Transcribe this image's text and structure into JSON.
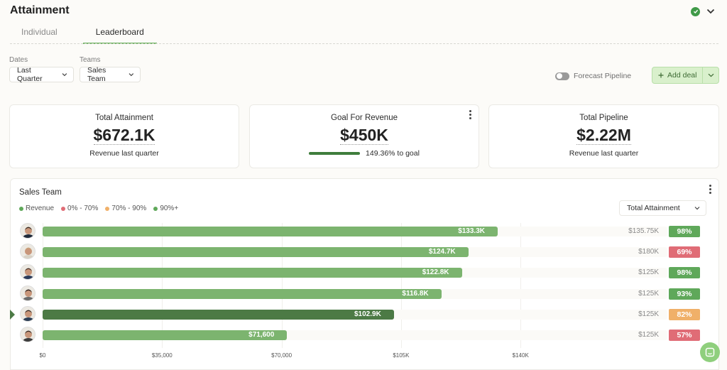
{
  "header": {
    "title": "Attainment"
  },
  "tabs": [
    {
      "label": "Individual",
      "active": false
    },
    {
      "label": "Leaderboard",
      "active": true
    }
  ],
  "filters": {
    "dates": {
      "label": "Dates",
      "value": "Last Quarter"
    },
    "teams": {
      "label": "Teams",
      "value": "Sales Team"
    }
  },
  "actions": {
    "forecast_label": "Forecast Pipeline",
    "forecast_on": false,
    "add_deal_label": "Add deal"
  },
  "cards": {
    "attainment": {
      "title": "Total Attainment",
      "value": "$672.1K",
      "sub": "Revenue last quarter"
    },
    "goal": {
      "title": "Goal For Revenue",
      "value": "$450K",
      "progress": 1.0,
      "sub": "149.36% to goal"
    },
    "pipeline": {
      "title": "Total Pipeline",
      "value": "$2.22M",
      "sub": "Revenue last quarter"
    }
  },
  "panel": {
    "title": "Sales Team",
    "metric": "Total Attainment"
  },
  "colors": {
    "bar": "#7cb46f",
    "bar_selected": "#4c7a45",
    "good": "#5fa85a",
    "bad": "#e06c76",
    "mid": "#f0b069"
  },
  "chart_data": {
    "type": "bar",
    "orientation": "horizontal",
    "legend": [
      {
        "label": "Revenue",
        "color": "#5fa85a"
      },
      {
        "label": "0% - 70%",
        "color": "#e06c76"
      },
      {
        "label": "70% - 90%",
        "color": "#f0b069"
      },
      {
        "label": "90%+",
        "color": "#5fa85a"
      }
    ],
    "x_ticks": [
      {
        "label": "$0",
        "value": 0
      },
      {
        "label": "$35,000",
        "value": 35000
      },
      {
        "label": "$70,000",
        "value": 70000
      },
      {
        "label": "$105K",
        "value": 105000
      },
      {
        "label": "$140K",
        "value": 140000
      }
    ],
    "xlim": [
      0,
      183000
    ],
    "rows": [
      {
        "value": 133300,
        "label": "$133.3K",
        "goal": "$135.75K",
        "pct": "98%",
        "band": "good",
        "selected": false
      },
      {
        "value": 124700,
        "label": "$124.7K",
        "goal": "$180K",
        "pct": "69%",
        "band": "bad",
        "selected": false
      },
      {
        "value": 122800,
        "label": "$122.8K",
        "goal": "$125K",
        "pct": "98%",
        "band": "good",
        "selected": false
      },
      {
        "value": 116800,
        "label": "$116.8K",
        "goal": "$125K",
        "pct": "93%",
        "band": "good",
        "selected": false
      },
      {
        "value": 102900,
        "label": "$102.9K",
        "goal": "$125K",
        "pct": "82%",
        "band": "mid",
        "selected": true
      },
      {
        "value": 71600,
        "label": "$71,600",
        "goal": "$125K",
        "pct": "57%",
        "band": "bad",
        "selected": false
      }
    ]
  }
}
